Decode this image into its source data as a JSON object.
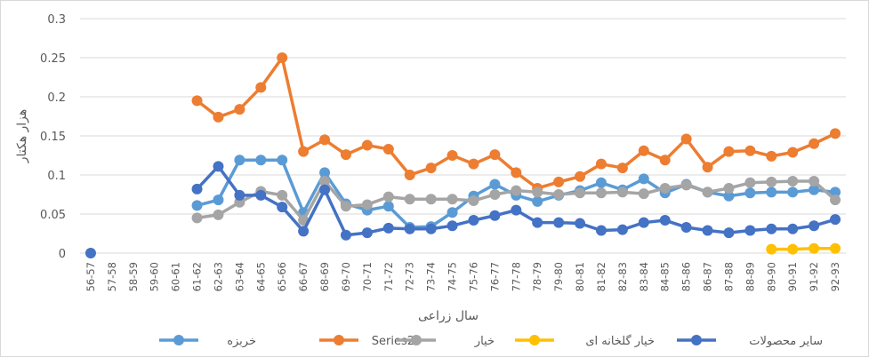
{
  "chart_data": {
    "type": "line",
    "xlabel": "سال زراعی",
    "ylabel": "هزار هکتار",
    "ylim": [
      0,
      0.3
    ],
    "yticks": [
      "0",
      "0.05",
      "0.1",
      "0.15",
      "0.2",
      "0.25",
      "0.3"
    ],
    "grid": true,
    "legend_position": "bottom",
    "categories": [
      "56-57",
      "57-58",
      "58-59",
      "59-60",
      "60-61",
      "61-62",
      "62-63",
      "63-64",
      "64-65",
      "65-66",
      "66-67",
      "68-69",
      "69-70",
      "70-71",
      "71-72",
      "72-73",
      "73-74",
      "74-75",
      "75-76",
      "76-77",
      "77-78",
      "78-79",
      "79-80",
      "80-81",
      "81-82",
      "82-83",
      "83-84",
      "84-85",
      "85-86",
      "86-87",
      "87-88",
      "88-89",
      "89-90",
      "90-91",
      "91-92",
      "92-93"
    ],
    "series": [
      {
        "name": "خربزه",
        "color": "#5b9bd5",
        "values": [
          null,
          null,
          null,
          null,
          null,
          0.061,
          0.068,
          0.119,
          0.119,
          0.119,
          0.052,
          0.103,
          0.063,
          0.055,
          0.06,
          0.033,
          0.034,
          0.052,
          0.073,
          0.088,
          0.074,
          0.066,
          0.074,
          0.08,
          0.09,
          0.081,
          0.095,
          0.077,
          0.088,
          0.078,
          0.073,
          0.077,
          0.078,
          0.078,
          0.081,
          0.078
        ]
      },
      {
        "name": "Series2",
        "color": "#ed7d31",
        "values": [
          null,
          null,
          null,
          null,
          null,
          0.195,
          0.174,
          0.184,
          0.212,
          0.25,
          0.13,
          0.145,
          0.126,
          0.138,
          0.133,
          0.1,
          0.109,
          0.125,
          0.114,
          0.126,
          0.103,
          0.083,
          0.091,
          0.098,
          0.114,
          0.109,
          0.131,
          0.119,
          0.146,
          0.11,
          0.13,
          0.131,
          0.124,
          0.129,
          0.14,
          0.153
        ]
      },
      {
        "name": "خیار",
        "color": "#a5a5a5",
        "values": [
          null,
          null,
          null,
          null,
          null,
          0.045,
          0.049,
          0.065,
          0.079,
          0.074,
          0.042,
          0.092,
          0.06,
          0.062,
          0.072,
          0.069,
          0.069,
          0.069,
          0.067,
          0.075,
          0.08,
          0.078,
          0.075,
          0.077,
          0.077,
          0.078,
          0.076,
          0.083,
          0.087,
          0.078,
          0.083,
          0.09,
          0.091,
          0.092,
          0.092,
          0.068
        ]
      },
      {
        "name": "خیار گلخانه ای",
        "color": "#ffc000",
        "values": [
          null,
          null,
          null,
          null,
          null,
          null,
          null,
          null,
          null,
          null,
          null,
          null,
          null,
          null,
          null,
          null,
          null,
          null,
          null,
          null,
          null,
          null,
          null,
          null,
          null,
          null,
          null,
          null,
          null,
          null,
          null,
          null,
          0.005,
          0.005,
          0.006,
          0.006
        ]
      },
      {
        "name": "سایر محصولات",
        "color": "#4472c4",
        "values": [
          0,
          null,
          null,
          null,
          null,
          0.082,
          0.111,
          0.074,
          0.074,
          0.059,
          0.028,
          0.081,
          0.023,
          0.026,
          0.032,
          0.031,
          0.031,
          0.035,
          0.042,
          0.048,
          0.055,
          0.039,
          0.039,
          0.038,
          0.029,
          0.03,
          0.039,
          0.042,
          0.033,
          0.029,
          0.026,
          0.029,
          0.031,
          0.031,
          0.035,
          0.043
        ]
      }
    ]
  }
}
